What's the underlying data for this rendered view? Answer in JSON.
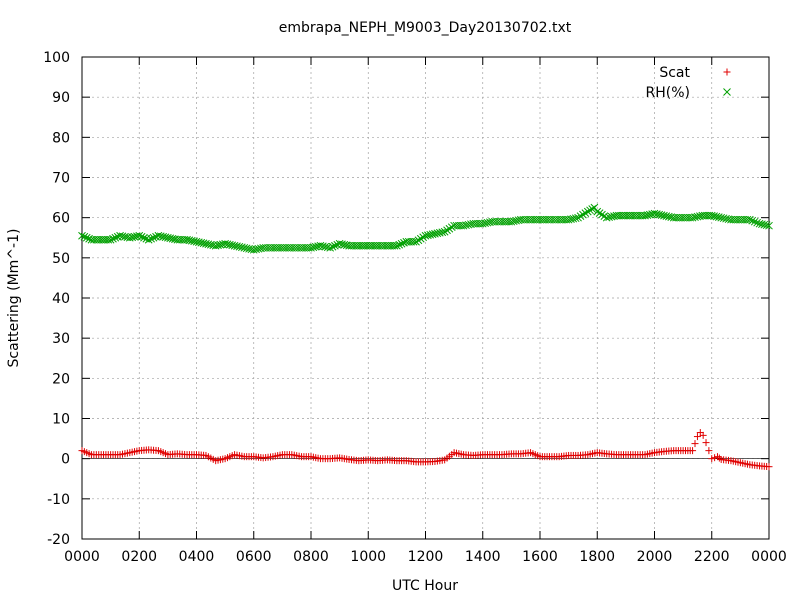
{
  "chart_data": {
    "type": "scatter",
    "title": "embrapa_NEPH_M9003_Day20130702.txt",
    "xlabel": "UTC Hour",
    "ylabel": "Scattering (Mm^-1)",
    "x_unit": "hours",
    "xlim": [
      0,
      24
    ],
    "ylim": [
      -20,
      100
    ],
    "grid": true,
    "zero_line": true,
    "legend_position": "top-right",
    "x_tick_values": [
      0,
      2,
      4,
      6,
      8,
      10,
      12,
      14,
      16,
      18,
      20,
      22,
      24
    ],
    "x_tick_labels": [
      "0000",
      "0200",
      "0400",
      "0600",
      "0800",
      "1000",
      "1200",
      "1400",
      "1600",
      "1800",
      "2000",
      "2200",
      "0000"
    ],
    "y_ticks": [
      -20,
      -10,
      0,
      10,
      20,
      30,
      40,
      50,
      60,
      70,
      80,
      90,
      100
    ],
    "series": [
      {
        "name": "Scat",
        "marker": "plus",
        "color": "#e00000",
        "points": [
          [
            0.0,
            2.0
          ],
          [
            0.33,
            1.0
          ],
          [
            0.67,
            1.0
          ],
          [
            1.0,
            1.0
          ],
          [
            1.33,
            1.0
          ],
          [
            1.67,
            1.5
          ],
          [
            2.0,
            2.0
          ],
          [
            2.33,
            2.2
          ],
          [
            2.67,
            2.0
          ],
          [
            3.0,
            1.0
          ],
          [
            3.33,
            1.2
          ],
          [
            3.67,
            1.0
          ],
          [
            4.0,
            1.0
          ],
          [
            4.33,
            0.8
          ],
          [
            4.67,
            -0.5
          ],
          [
            5.0,
            0.0
          ],
          [
            5.33,
            1.0
          ],
          [
            5.67,
            0.5
          ],
          [
            6.0,
            0.5
          ],
          [
            6.33,
            0.2
          ],
          [
            6.67,
            0.5
          ],
          [
            7.0,
            1.0
          ],
          [
            7.33,
            1.0
          ],
          [
            7.67,
            0.5
          ],
          [
            8.0,
            0.5
          ],
          [
            8.33,
            0.0
          ],
          [
            8.67,
            0.0
          ],
          [
            9.0,
            0.2
          ],
          [
            9.33,
            -0.2
          ],
          [
            9.67,
            -0.5
          ],
          [
            10.0,
            -0.3
          ],
          [
            10.33,
            -0.5
          ],
          [
            10.67,
            -0.3
          ],
          [
            11.0,
            -0.5
          ],
          [
            11.33,
            -0.5
          ],
          [
            11.67,
            -0.8
          ],
          [
            12.0,
            -0.8
          ],
          [
            12.33,
            -0.7
          ],
          [
            12.67,
            -0.3
          ],
          [
            13.0,
            1.5
          ],
          [
            13.33,
            1.0
          ],
          [
            13.67,
            0.8
          ],
          [
            14.0,
            1.0
          ],
          [
            14.33,
            1.0
          ],
          [
            14.67,
            1.0
          ],
          [
            15.0,
            1.2
          ],
          [
            15.33,
            1.2
          ],
          [
            15.67,
            1.5
          ],
          [
            16.0,
            0.5
          ],
          [
            16.33,
            0.5
          ],
          [
            16.67,
            0.5
          ],
          [
            17.0,
            0.8
          ],
          [
            17.33,
            0.8
          ],
          [
            17.67,
            1.0
          ],
          [
            18.0,
            1.5
          ],
          [
            18.33,
            1.2
          ],
          [
            18.67,
            1.0
          ],
          [
            19.0,
            1.0
          ],
          [
            19.33,
            1.0
          ],
          [
            19.67,
            1.0
          ],
          [
            20.0,
            1.5
          ],
          [
            20.33,
            1.8
          ],
          [
            20.67,
            2.0
          ],
          [
            21.0,
            2.0
          ],
          [
            21.33,
            2.0
          ],
          [
            21.5,
            5.5
          ],
          [
            21.6,
            6.5
          ],
          [
            21.7,
            5.8
          ],
          [
            21.8,
            4.0
          ],
          [
            22.0,
            0.0
          ],
          [
            22.2,
            0.5
          ],
          [
            22.33,
            -0.2
          ],
          [
            22.67,
            -0.5
          ],
          [
            23.0,
            -1.0
          ],
          [
            23.33,
            -1.5
          ],
          [
            23.67,
            -1.8
          ],
          [
            24.0,
            -2.0
          ]
        ]
      },
      {
        "name": "RH(%)",
        "marker": "cross",
        "color": "#00a000",
        "points": [
          [
            0.0,
            55.5
          ],
          [
            0.33,
            54.5
          ],
          [
            0.67,
            54.5
          ],
          [
            1.0,
            54.5
          ],
          [
            1.33,
            55.5
          ],
          [
            1.67,
            55.0
          ],
          [
            2.0,
            55.5
          ],
          [
            2.33,
            54.5
          ],
          [
            2.67,
            55.5
          ],
          [
            3.0,
            55.0
          ],
          [
            3.33,
            54.5
          ],
          [
            3.67,
            54.5
          ],
          [
            4.0,
            54.0
          ],
          [
            4.33,
            53.5
          ],
          [
            4.67,
            53.0
          ],
          [
            5.0,
            53.5
          ],
          [
            5.33,
            53.0
          ],
          [
            5.67,
            52.5
          ],
          [
            6.0,
            52.0
          ],
          [
            6.33,
            52.5
          ],
          [
            6.67,
            52.5
          ],
          [
            7.0,
            52.5
          ],
          [
            7.33,
            52.5
          ],
          [
            7.67,
            52.5
          ],
          [
            8.0,
            52.5
          ],
          [
            8.33,
            53.0
          ],
          [
            8.67,
            52.5
          ],
          [
            9.0,
            53.5
          ],
          [
            9.33,
            53.0
          ],
          [
            9.67,
            53.0
          ],
          [
            10.0,
            53.0
          ],
          [
            10.33,
            53.0
          ],
          [
            10.67,
            53.0
          ],
          [
            11.0,
            53.0
          ],
          [
            11.33,
            54.0
          ],
          [
            11.67,
            54.0
          ],
          [
            12.0,
            55.5
          ],
          [
            12.33,
            56.0
          ],
          [
            12.67,
            56.5
          ],
          [
            13.0,
            58.0
          ],
          [
            13.33,
            58.0
          ],
          [
            13.67,
            58.5
          ],
          [
            14.0,
            58.5
          ],
          [
            14.33,
            59.0
          ],
          [
            14.67,
            59.0
          ],
          [
            15.0,
            59.0
          ],
          [
            15.33,
            59.5
          ],
          [
            15.67,
            59.5
          ],
          [
            16.0,
            59.5
          ],
          [
            16.33,
            59.5
          ],
          [
            16.67,
            59.5
          ],
          [
            17.0,
            59.5
          ],
          [
            17.33,
            60.0
          ],
          [
            17.67,
            61.5
          ],
          [
            17.9,
            62.5
          ],
          [
            18.0,
            61.5
          ],
          [
            18.33,
            60.0
          ],
          [
            18.67,
            60.5
          ],
          [
            19.0,
            60.5
          ],
          [
            19.33,
            60.5
          ],
          [
            19.67,
            60.5
          ],
          [
            20.0,
            61.0
          ],
          [
            20.33,
            60.5
          ],
          [
            20.67,
            60.0
          ],
          [
            21.0,
            60.0
          ],
          [
            21.33,
            60.0
          ],
          [
            21.67,
            60.5
          ],
          [
            22.0,
            60.5
          ],
          [
            22.33,
            60.0
          ],
          [
            22.67,
            59.5
          ],
          [
            23.0,
            59.5
          ],
          [
            23.33,
            59.5
          ],
          [
            23.67,
            58.5
          ],
          [
            24.0,
            58.0
          ]
        ]
      }
    ]
  }
}
